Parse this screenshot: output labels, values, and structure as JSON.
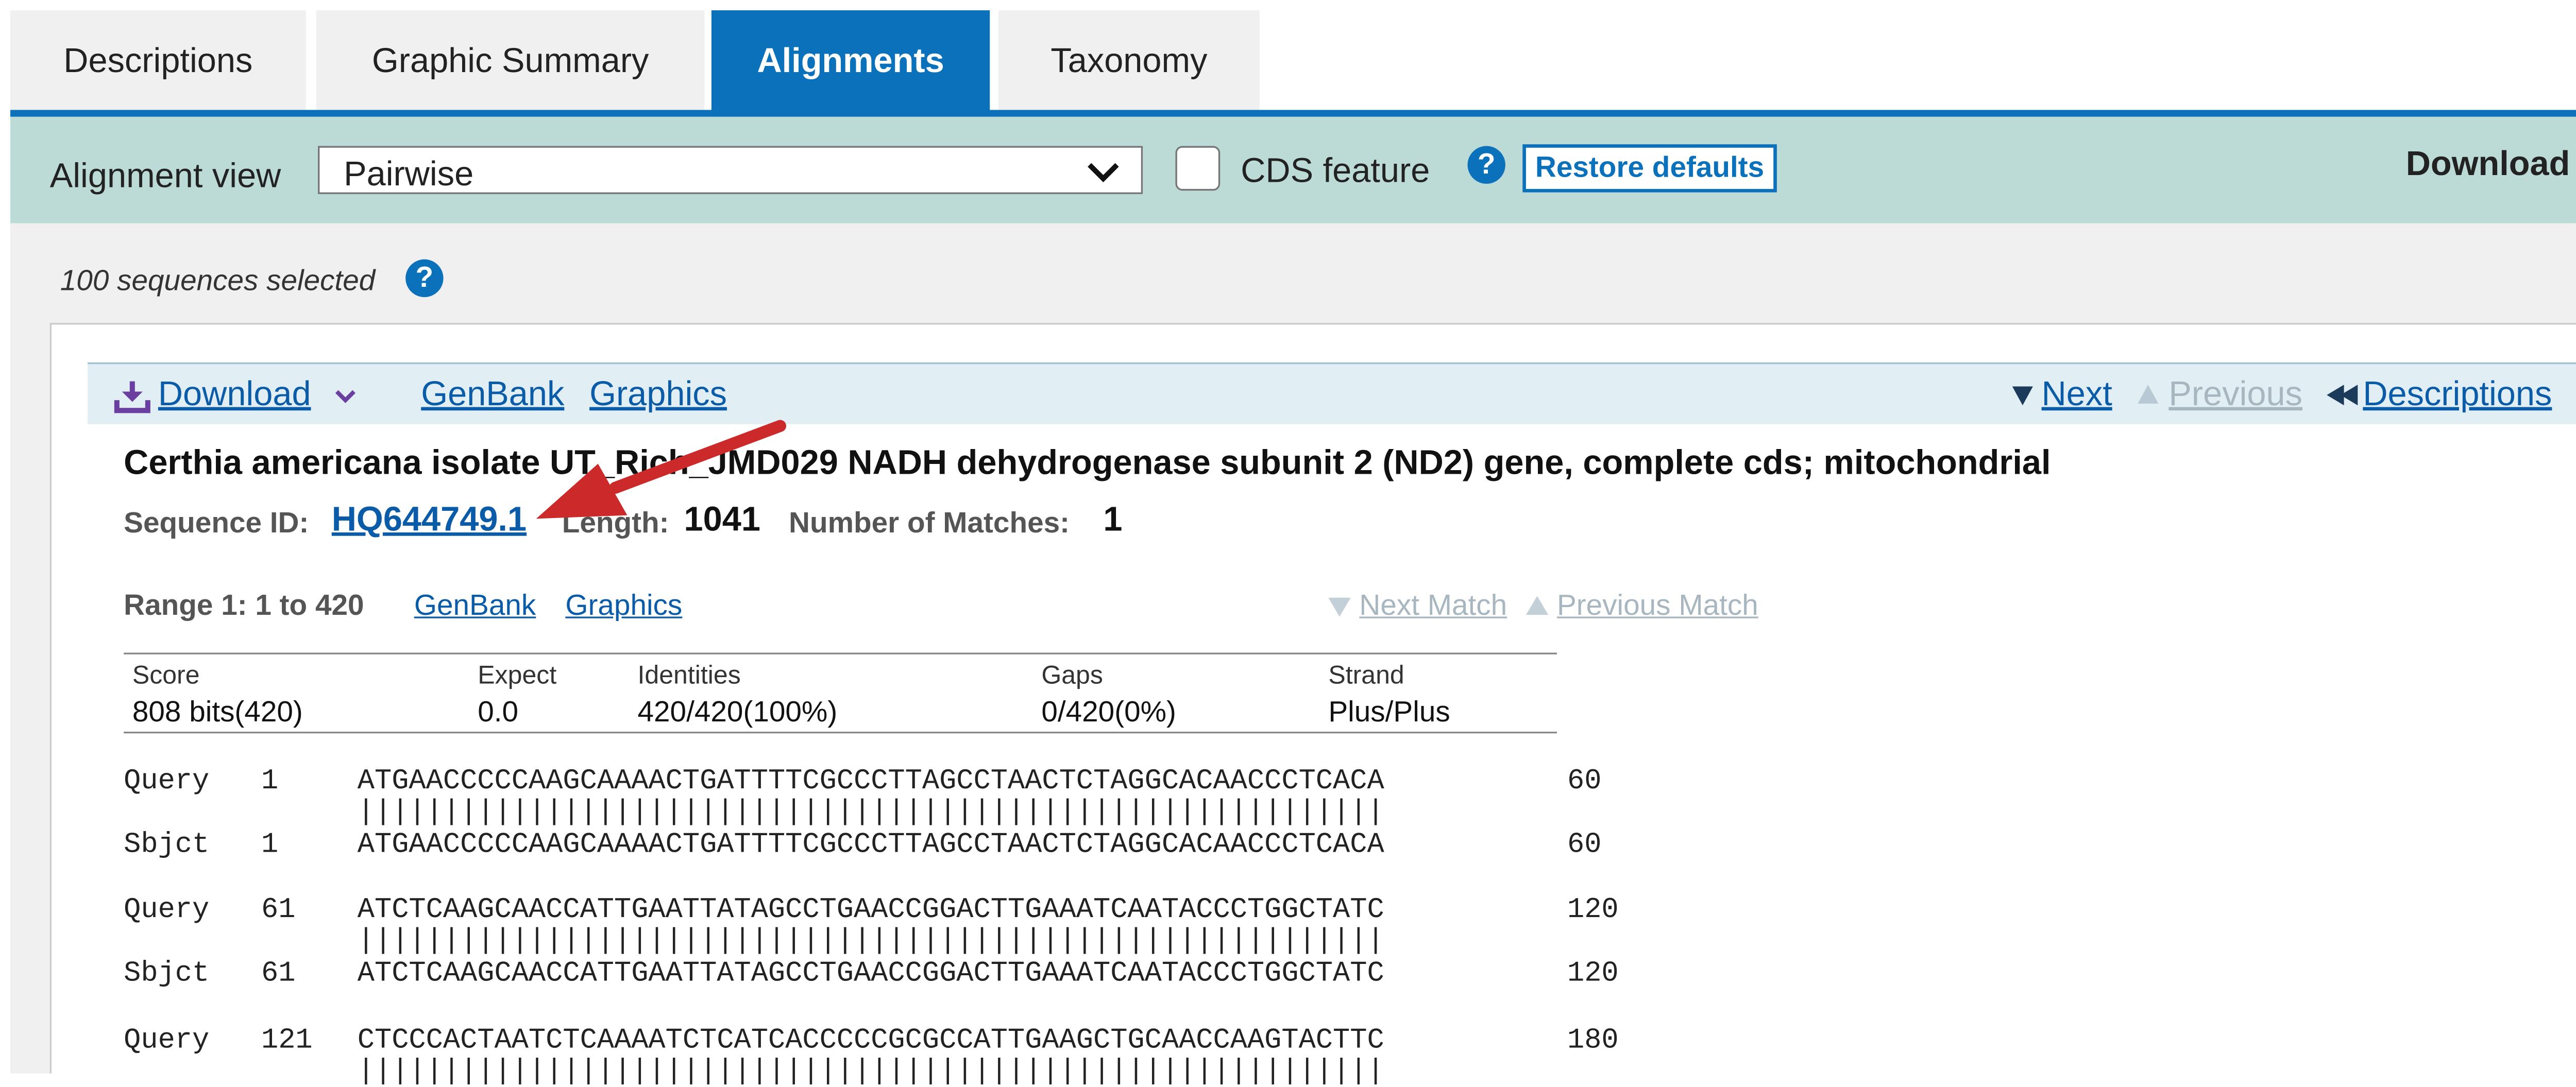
{
  "tabs": [
    "Descriptions",
    "Graphic Summary",
    "Alignments",
    "Taxonomy"
  ],
  "toolbar": {
    "alignment_view_label": "Alignment view",
    "alignment_view_value": "Pairwise",
    "cds_feature_label": "CDS feature",
    "help_glyph": "?",
    "restore_defaults": "Restore defaults",
    "download": "Download"
  },
  "selection_text": "100 sequences selected",
  "linkbar": {
    "download": "Download",
    "genbank": "GenBank",
    "graphics": "Graphics",
    "next": "Next",
    "previous": "Previous",
    "descriptions": "Descriptions"
  },
  "hit": {
    "title": "Certhia americana isolate UT_Rich_JMD029 NADH dehydrogenase subunit 2 (ND2) gene, complete cds; mitochondrial",
    "seq_id_label": "Sequence ID:",
    "seq_id": "HQ644749.1",
    "length_label": "Length:",
    "length": "1041",
    "matches_label": "Number of Matches:",
    "matches": "1"
  },
  "range": {
    "label": "Range 1: 1 to 420",
    "genbank": "GenBank",
    "graphics": "Graphics",
    "next_match": "Next Match",
    "previous_match": "Previous Match"
  },
  "stats": {
    "headers": [
      "Score",
      "Expect",
      "Identities",
      "Gaps",
      "Strand"
    ],
    "values": [
      "808 bits(420)",
      "0.0",
      "420/420(100%)",
      "0/420(0%)",
      "Plus/Plus"
    ]
  },
  "alignment": [
    {
      "q_label": "Query",
      "q_start": "1",
      "q_seq": "ATGAACCCCCAAGCAAAACTGATTTTCGCCCTTAGCCTAACTCTAGGCACAACCCTCACA",
      "q_end": "60",
      "match": "||||||||||||||||||||||||||||||||||||||||||||||||||||||||||||",
      "s_label": "Sbjct",
      "s_start": "1",
      "s_seq": "ATGAACCCCCAAGCAAAACTGATTTTCGCCCTTAGCCTAACTCTAGGCACAACCCTCACA",
      "s_end": "60"
    },
    {
      "q_label": "Query",
      "q_start": "61",
      "q_seq": "ATCTCAAGCAACCATTGAATTATAGCCTGAACCGGACTTGAAATCAATACCCTGGCTATC",
      "q_end": "120",
      "match": "||||||||||||||||||||||||||||||||||||||||||||||||||||||||||||",
      "s_label": "Sbjct",
      "s_start": "61",
      "s_seq": "ATCTCAAGCAACCATTGAATTATAGCCTGAACCGGACTTGAAATCAATACCCTGGCTATC",
      "s_end": "120"
    },
    {
      "q_label": "Query",
      "q_start": "121",
      "q_seq": "CTCCCACTAATCTCAAAATCTCATCACCCCCGCGCCATTGAAGCTGCAACCAAGTACTTC",
      "q_end": "180",
      "match": "||||||||||||||||||||||||||||||||||||||||||||||||||||||||||||"
    }
  ],
  "colors": {
    "tab_active": "#0b71bb",
    "toolbar_bg": "#bcdbd7",
    "link": "#0b5ca8",
    "arrow": "#cc2a2a"
  }
}
